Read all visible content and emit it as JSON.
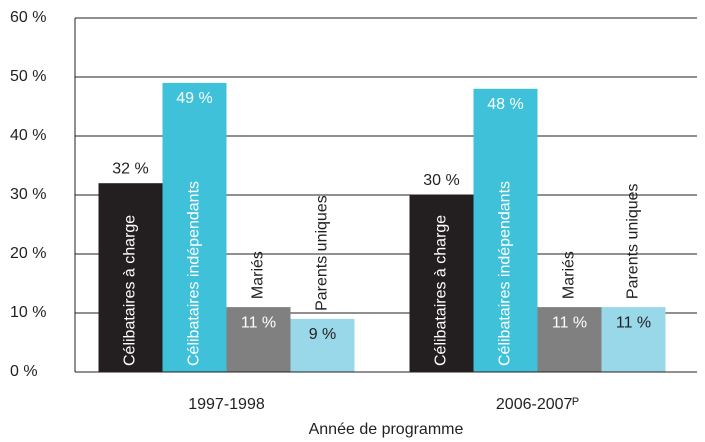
{
  "chart_data": {
    "type": "bar",
    "categories": [
      "1997-1998",
      "2006-2007ᴾ"
    ],
    "x_label": "Année de programme",
    "series": [
      {
        "name": "Célibataires à charge",
        "color": "#231f20",
        "values": [
          32,
          30
        ],
        "value_labels": [
          "32 %",
          "30 %"
        ]
      },
      {
        "name": "Célibataires indépendants",
        "color": "#3ec1d9",
        "values": [
          49,
          48
        ],
        "value_labels": [
          "49 %",
          "48 %"
        ]
      },
      {
        "name": "Mariés",
        "color": "#808080",
        "values": [
          11,
          11
        ],
        "value_labels": [
          "11 %",
          "11 %"
        ]
      },
      {
        "name": "Parents uniques",
        "color": "#98d8e8",
        "values": [
          9,
          11
        ],
        "value_labels": [
          "9 %",
          "11 %"
        ]
      }
    ],
    "ylim": [
      0,
      60
    ],
    "yticks": [
      {
        "value": 0,
        "label": "0 %"
      },
      {
        "value": 10,
        "label": "10 %"
      },
      {
        "value": 20,
        "label": "20 %"
      },
      {
        "value": 30,
        "label": "30 %"
      },
      {
        "value": 40,
        "label": "40 %"
      },
      {
        "value": 50,
        "label": "50 %"
      },
      {
        "value": 60,
        "label": "60 %"
      }
    ],
    "grid": true
  }
}
